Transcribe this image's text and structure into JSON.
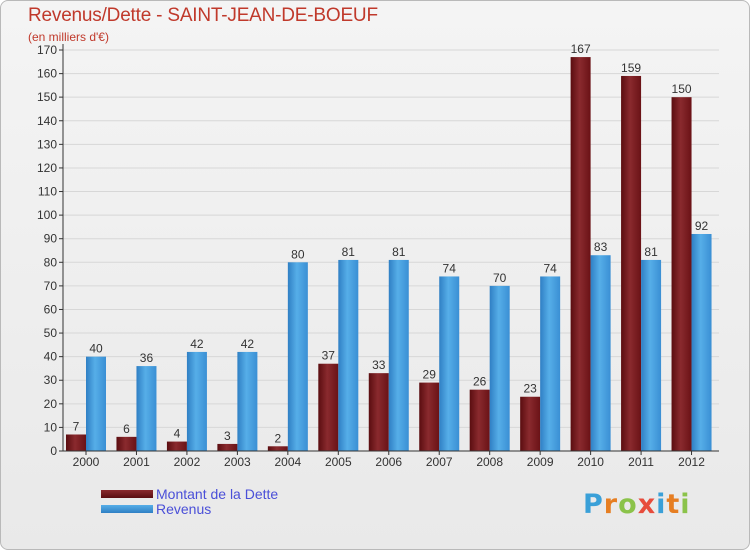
{
  "header": {
    "title": "Revenus/Dette - SAINT-JEAN-DE-BOEUF",
    "subtitle": "(en milliers d'€)"
  },
  "logo": {
    "letters": [
      "P",
      "r",
      "o",
      "x",
      "i",
      "t",
      "i"
    ],
    "colors": [
      "#3aa0d8",
      "#e67e22",
      "#8bc34a",
      "#e74c3c",
      "#3aa0d8",
      "#e67e22",
      "#8bc34a"
    ]
  },
  "colors": {
    "debt": "#7a1a1e",
    "revenue": "#3f95d8",
    "axis": "#333333",
    "grid": "#d7d7d7",
    "text": "#333333"
  },
  "chart_data": {
    "type": "bar",
    "title": "Revenus/Dette - SAINT-JEAN-DE-BOEUF",
    "subtitle": "(en milliers d'€)",
    "categories": [
      "2000",
      "2001",
      "2002",
      "2003",
      "2004",
      "2005",
      "2006",
      "2007",
      "2008",
      "2009",
      "2010",
      "2011",
      "2012"
    ],
    "series": [
      {
        "name": "Montant de la Dette",
        "values": [
          7,
          6,
          4,
          3,
          2,
          37,
          33,
          29,
          26,
          23,
          167,
          159,
          150
        ]
      },
      {
        "name": "Revenus",
        "values": [
          40,
          36,
          42,
          42,
          80,
          81,
          81,
          74,
          70,
          74,
          83,
          81,
          92
        ]
      }
    ],
    "ylim": [
      0,
      170
    ],
    "yticks": [
      0,
      10,
      20,
      30,
      40,
      50,
      60,
      70,
      80,
      90,
      100,
      110,
      120,
      130,
      140,
      150,
      160,
      170
    ],
    "grid": true,
    "legend_position": "bottom-left",
    "data_labels": true
  }
}
